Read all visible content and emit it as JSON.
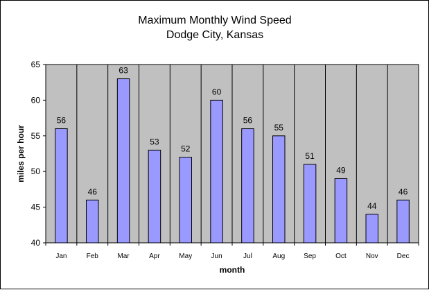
{
  "chart_data": {
    "type": "bar",
    "title": "Maximum Monthly Wind Speed",
    "subtitle": "Dodge City, Kansas",
    "xlabel": "month",
    "ylabel": "miles per hour",
    "ylim": [
      40,
      65
    ],
    "yticks": [
      40,
      45,
      50,
      55,
      60,
      65
    ],
    "categories": [
      "Jan",
      "Feb",
      "Mar",
      "Apr",
      "May",
      "Jun",
      "Jul",
      "Aug",
      "Sep",
      "Oct",
      "Nov",
      "Dec"
    ],
    "values": [
      56,
      46,
      63,
      53,
      52,
      60,
      56,
      55,
      51,
      49,
      44,
      46
    ],
    "data_labels": true,
    "grid": false,
    "legend": "none",
    "colors": {
      "plot_background": "#c0c0c0",
      "bar_fill": "#9999ff",
      "bar_stroke": "#000000",
      "axis": "#000000",
      "category_separator": "#000000"
    }
  }
}
